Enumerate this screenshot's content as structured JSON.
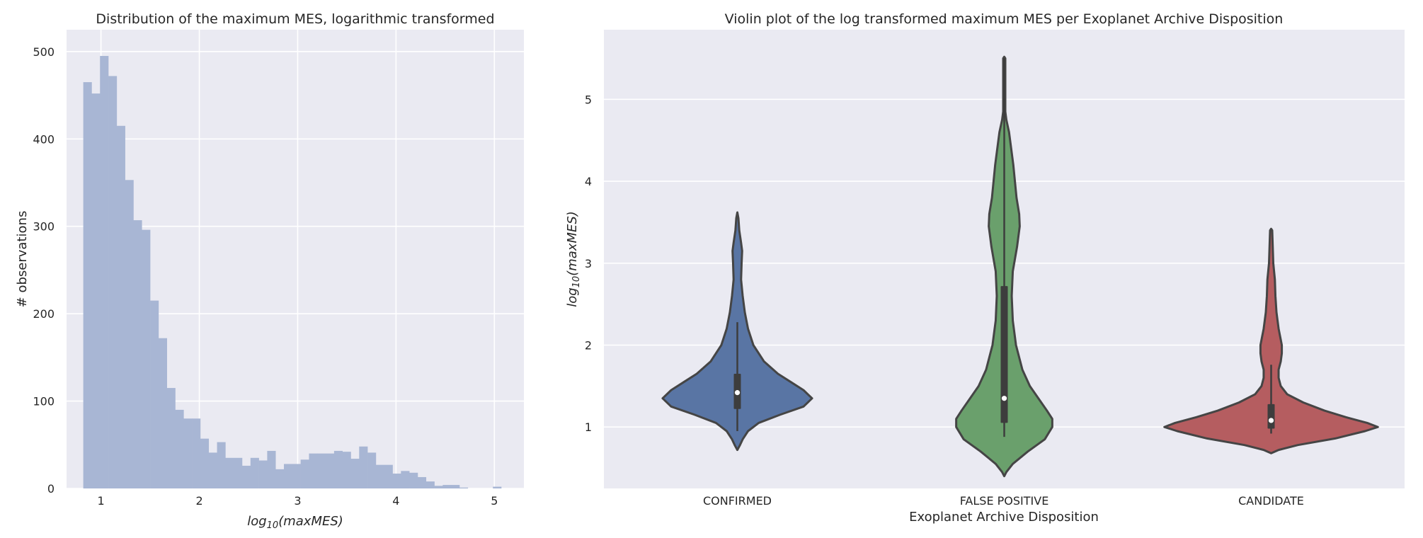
{
  "chart_data": [
    {
      "type": "histogram",
      "title": "Distribution of the maximum MES, logarithmic transformed",
      "xlabel": "log10(maxMES)",
      "ylabel": "# observations",
      "xlim": [
        0.65,
        5.3
      ],
      "ylim": [
        0,
        525
      ],
      "xticks": [
        "1",
        "2",
        "3",
        "4",
        "5"
      ],
      "yticks": [
        "0",
        "100",
        "200",
        "300",
        "400",
        "500"
      ],
      "grid": true,
      "bar_color": "#a8b6d4",
      "bin_start": 0.82,
      "bin_width": 0.085,
      "counts": [
        465,
        452,
        495,
        472,
        415,
        353,
        307,
        296,
        215,
        172,
        115,
        90,
        80,
        80,
        57,
        41,
        53,
        35,
        35,
        26,
        35,
        32,
        43,
        22,
        28,
        28,
        33,
        40,
        40,
        40,
        43,
        42,
        34,
        48,
        41,
        27,
        27,
        17,
        20,
        18,
        13,
        8,
        3,
        4,
        4,
        1,
        0,
        0,
        0,
        2
      ]
    },
    {
      "type": "violin",
      "title": "Violin plot of the log transformed maximum MES per Exoplanet Archive Disposition",
      "xlabel": "Exoplanet Archive Disposition",
      "ylabel": "log10(maxMES)",
      "ylim": [
        0.25,
        5.85
      ],
      "yticks": [
        "1",
        "2",
        "3",
        "4",
        "5"
      ],
      "grid": true,
      "categories": [
        "CONFIRMED",
        "FALSE POSITIVE",
        "CANDIDATE"
      ],
      "series": [
        {
          "category": "CONFIRMED",
          "color": "#5975a4",
          "median": 1.42,
          "q1": 1.22,
          "q3": 1.65,
          "whisker_low": 0.95,
          "whisker_high": 2.28,
          "profile": [
            [
              0.72,
              0
            ],
            [
              0.78,
              0.025
            ],
            [
              0.85,
              0.05
            ],
            [
              0.95,
              0.1
            ],
            [
              1.05,
              0.2
            ],
            [
              1.15,
              0.4
            ],
            [
              1.25,
              0.62
            ],
            [
              1.35,
              0.7
            ],
            [
              1.45,
              0.62
            ],
            [
              1.55,
              0.5
            ],
            [
              1.65,
              0.38
            ],
            [
              1.8,
              0.25
            ],
            [
              2.0,
              0.15
            ],
            [
              2.2,
              0.1
            ],
            [
              2.4,
              0.07
            ],
            [
              2.6,
              0.05
            ],
            [
              2.8,
              0.035
            ],
            [
              3.0,
              0.04
            ],
            [
              3.15,
              0.045
            ],
            [
              3.25,
              0.035
            ],
            [
              3.4,
              0.018
            ],
            [
              3.55,
              0.01
            ],
            [
              3.62,
              0
            ]
          ]
        },
        {
          "category": "FALSE POSITIVE",
          "color": "#6aa06c",
          "median": 1.35,
          "q1": 1.05,
          "q3": 2.72,
          "whisker_low": 0.88,
          "whisker_high": 5.5,
          "profile": [
            [
              0.4,
              0
            ],
            [
              0.45,
              0.02
            ],
            [
              0.55,
              0.08
            ],
            [
              0.7,
              0.22
            ],
            [
              0.85,
              0.38
            ],
            [
              1.0,
              0.45
            ],
            [
              1.1,
              0.45
            ],
            [
              1.2,
              0.4
            ],
            [
              1.35,
              0.32
            ],
            [
              1.5,
              0.24
            ],
            [
              1.7,
              0.17
            ],
            [
              2.0,
              0.11
            ],
            [
              2.3,
              0.08
            ],
            [
              2.6,
              0.07
            ],
            [
              2.9,
              0.08
            ],
            [
              3.2,
              0.12
            ],
            [
              3.45,
              0.145
            ],
            [
              3.6,
              0.14
            ],
            [
              3.8,
              0.115
            ],
            [
              4.0,
              0.1
            ],
            [
              4.2,
              0.085
            ],
            [
              4.4,
              0.065
            ],
            [
              4.6,
              0.045
            ],
            [
              4.75,
              0.02
            ],
            [
              4.85,
              0.01
            ],
            [
              5.0,
              0.01
            ],
            [
              5.5,
              0.01
            ],
            [
              5.52,
              0
            ]
          ]
        },
        {
          "category": "CANDIDATE",
          "color": "#b55d60",
          "median": 1.08,
          "q1": 0.98,
          "q3": 1.28,
          "whisker_low": 0.92,
          "whisker_high": 1.76,
          "profile": [
            [
              0.68,
              0
            ],
            [
              0.72,
              0.07
            ],
            [
              0.78,
              0.25
            ],
            [
              0.86,
              0.6
            ],
            [
              0.95,
              0.88
            ],
            [
              1.0,
              1.0
            ],
            [
              1.05,
              0.9
            ],
            [
              1.12,
              0.7
            ],
            [
              1.2,
              0.5
            ],
            [
              1.3,
              0.3
            ],
            [
              1.4,
              0.15
            ],
            [
              1.5,
              0.09
            ],
            [
              1.6,
              0.07
            ],
            [
              1.7,
              0.07
            ],
            [
              1.8,
              0.09
            ],
            [
              1.9,
              0.1
            ],
            [
              2.0,
              0.1
            ],
            [
              2.1,
              0.085
            ],
            [
              2.2,
              0.07
            ],
            [
              2.4,
              0.05
            ],
            [
              2.6,
              0.04
            ],
            [
              2.8,
              0.035
            ],
            [
              3.0,
              0.02
            ],
            [
              3.2,
              0.015
            ],
            [
              3.4,
              0.01
            ],
            [
              3.42,
              0
            ]
          ]
        }
      ]
    }
  ]
}
